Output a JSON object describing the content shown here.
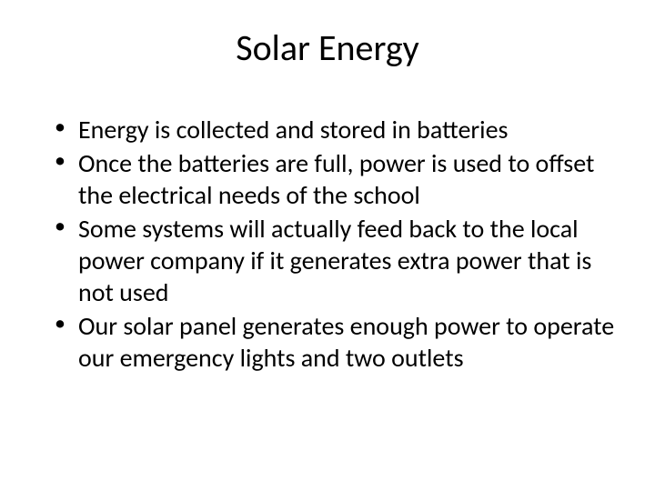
{
  "slide": {
    "title": "Solar Energy",
    "bullets": [
      "Energy is collected and stored in batteries",
      "Once the batteries are full, power is used to offset the electrical needs of the school",
      "Some systems will actually feed back to the local power company if it generates extra power that is not used",
      "Our solar panel generates enough power to operate our emergency lights and two outlets"
    ],
    "background_color": "#ffffff",
    "text_color": "#000000",
    "title_fontsize": 40,
    "body_fontsize": 28,
    "font_family": "Calibri"
  }
}
